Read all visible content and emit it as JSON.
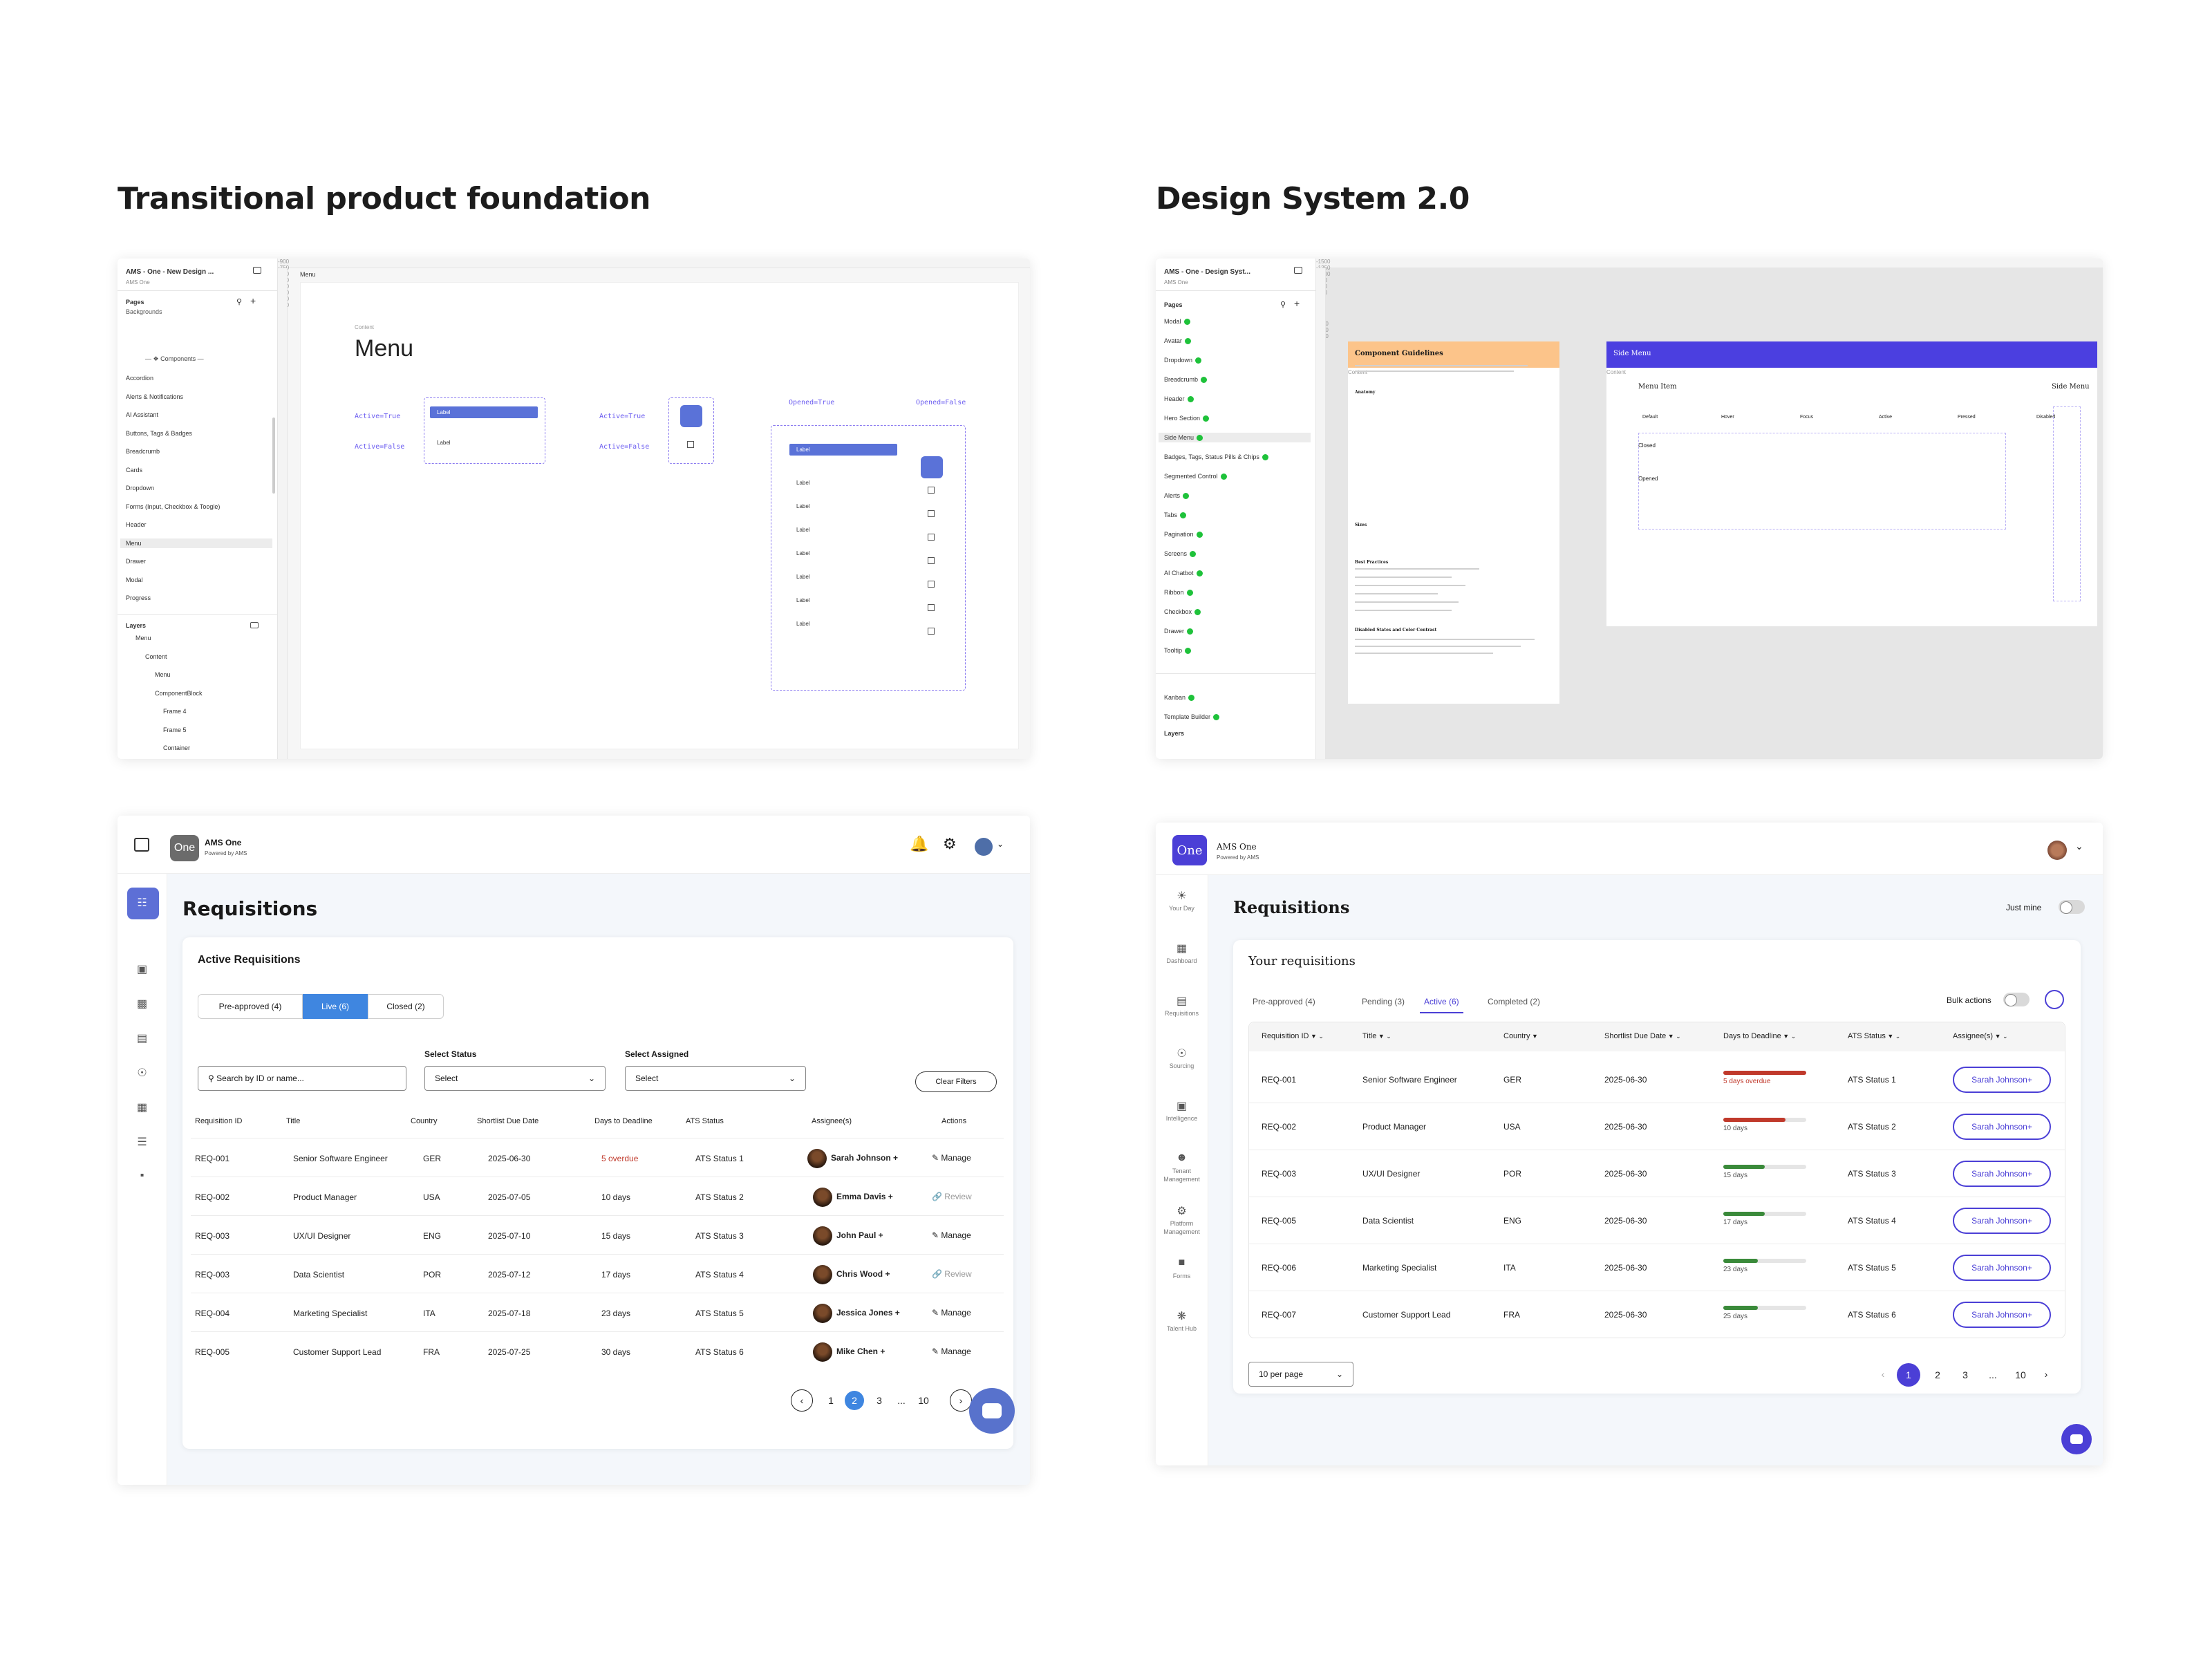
{
  "titles": {
    "left": "Transitional product foundation",
    "right": "Design System 2.0"
  },
  "fig1": {
    "file_title": "AMS - One - New Design ...",
    "file_sub": "AMS One",
    "pages_label": "Pages",
    "pages_top": "Backgrounds",
    "components_divider": "— ❖ Components —",
    "pages": [
      "Accordion",
      "Alerts & Notifications",
      "AI Assistant",
      "Buttons, Tags & Badges",
      "Breadcrumb",
      "Cards",
      "Dropdown",
      "Forms (Input, Checkbox & Toogle)",
      "Header",
      "Menu",
      "Drawer",
      "Modal",
      "Progress"
    ],
    "layers_label": "Layers",
    "layers": [
      "Menu",
      "Content",
      "Menu",
      "ComponentBlock",
      "Frame 4",
      "Frame 5",
      "Container"
    ],
    "frame_tag": "Menu",
    "content_tag": "Content",
    "canvas_title": "Menu",
    "ruler": [
      "-900",
      "-750",
      "-600",
      "-500",
      "-450",
      "-300",
      "-200",
      "-100",
      "0",
      "100",
      "200",
      "300",
      "400",
      "500",
      "600",
      "700",
      "800"
    ],
    "active_true": "Active=True",
    "active_false": "Active=False",
    "opened_true": "Opened=True",
    "opened_false": "Opened=False",
    "item_label": "Label"
  },
  "fig2": {
    "file_title": "AMS - One - Design Syst...",
    "file_sub": "AMS One",
    "pages_label": "Pages",
    "pages": [
      "Modal",
      "Avatar",
      "Dropdown",
      "Breadcrumb",
      "Header",
      "Hero Section",
      "Side Menu",
      "Badges, Tags, Status Pills & Chips",
      "Segmented Control",
      "Alerts",
      "Tabs",
      "Pagination",
      "Screens",
      "AI Chatbot",
      "Ribbon",
      "Checkbox",
      "Drawer",
      "Tooltip"
    ],
    "pages_extra": [
      "Kanban",
      "Template Builder"
    ],
    "layers_label": "Layers",
    "ruler": [
      "-1500",
      "-1250",
      "-1000",
      "-750",
      "-500",
      "-250",
      "0",
      "250",
      "500",
      "750",
      "1000",
      "1250",
      "1500"
    ],
    "guidelines_title": "Component Guidelines",
    "content_tag": "Content",
    "side_menu_title": "Side Menu",
    "menu_item_label": "Menu Item",
    "side_menu_label": "Side Menu",
    "state_cols": [
      "Default",
      "Hover",
      "Focus",
      "Active",
      "Pressed",
      "Disabled"
    ],
    "row_labels": [
      "Closed",
      "Opened"
    ],
    "guide_headings": [
      "Anatomy",
      "Sizes",
      "Best Practices",
      "Disabled States and Color Contrast"
    ]
  },
  "app1": {
    "logo": "One",
    "brand": "AMS One",
    "brand_sub": "Powered by AMS",
    "page_title": "Requisitions",
    "card_title": "Active Requisitions",
    "tabs": [
      "Pre-approved (4)",
      "Live (6)",
      "Closed (2)"
    ],
    "search_placeholder": "Search by ID or name...",
    "status_label": "Select Status",
    "status_value": "Select",
    "assigned_label": "Select Assigned",
    "assigned_value": "Select",
    "clear": "Clear Filters",
    "headers": [
      "Requisition ID",
      "Title",
      "Country",
      "Shortlist Due Date",
      "Days to Deadline",
      "ATS Status",
      "Assignee(s)",
      "Actions"
    ],
    "rows": [
      {
        "id": "REQ-001",
        "title": "Senior Software Engineer",
        "country": "GER",
        "date": "2025-06-30",
        "days": "5 overdue",
        "status": "ATS Status 1",
        "assignee": "Sarah Johnson",
        "action": "Manage"
      },
      {
        "id": "REQ-002",
        "title": "Product Manager",
        "country": "USA",
        "date": "2025-07-05",
        "days": "10 days",
        "status": "ATS Status 2",
        "assignee": "Emma Davis",
        "action": "Review"
      },
      {
        "id": "REQ-003",
        "title": "UX/UI Designer",
        "country": "ENG",
        "date": "2025-07-10",
        "days": "15 days",
        "status": "ATS Status 3",
        "assignee": "John Paul",
        "action": "Manage"
      },
      {
        "id": "REQ-003",
        "title": "Data Scientist",
        "country": "POR",
        "date": "2025-07-12",
        "days": "17 days",
        "status": "ATS Status 4",
        "assignee": "Chris Wood",
        "action": "Review"
      },
      {
        "id": "REQ-004",
        "title": "Marketing Specialist",
        "country": "ITA",
        "date": "2025-07-18",
        "days": "23 days",
        "status": "ATS Status 5",
        "assignee": "Jessica Jones",
        "action": "Manage"
      },
      {
        "id": "REQ-005",
        "title": "Customer Support Lead",
        "country": "FRA",
        "date": "2025-07-25",
        "days": "30 days",
        "status": "ATS Status 6",
        "assignee": "Mike Chen",
        "action": "Manage"
      }
    ],
    "pages": [
      "1",
      "2",
      "3",
      "...",
      "10"
    ],
    "colors": {
      "accent": "#3f86e0",
      "overdue": "#c0392b",
      "nav_active": "#5d6fd6"
    }
  },
  "app2": {
    "logo": "One",
    "brand": "AMS One",
    "brand_sub": "Powered by AMS",
    "nav": [
      "Your Day",
      "Dashboard",
      "Requisitions",
      "Sourcing",
      "Intelligence",
      "Tenant Management",
      "Platform Management",
      "Forms",
      "Talent Hub"
    ],
    "page_title": "Requisitions",
    "just_mine": "Just mine",
    "card_title": "Your requisitions",
    "tabs": [
      "Pre-approved (4)",
      "Pending (3)",
      "Active (6)",
      "Completed (2)"
    ],
    "bulk": "Bulk actions",
    "headers": [
      "Requisition ID",
      "Title",
      "Country",
      "Shortlist Due Date",
      "Days to Deadline",
      "ATS Status",
      "Assignee(s)"
    ],
    "rows": [
      {
        "id": "REQ-001",
        "title": "Senior Software Engineer",
        "country": "GER",
        "date": "2025-06-30",
        "days": "5 days overdue",
        "progress": 1.0,
        "color": "#c0392b",
        "status": "ATS Status 1",
        "assignee": "Sarah Johnson"
      },
      {
        "id": "REQ-002",
        "title": "Product Manager",
        "country": "USA",
        "date": "2025-06-30",
        "days": "10 days",
        "progress": 0.75,
        "color": "#c0392b",
        "status": "ATS Status 2",
        "assignee": "Sarah Johnson"
      },
      {
        "id": "REQ-003",
        "title": "UX/UI Designer",
        "country": "POR",
        "date": "2025-06-30",
        "days": "15 days",
        "progress": 0.5,
        "color": "#3a8a3a",
        "status": "ATS Status 3",
        "assignee": "Sarah Johnson"
      },
      {
        "id": "REQ-005",
        "title": "Data Scientist",
        "country": "ENG",
        "date": "2025-06-30",
        "days": "17 days",
        "progress": 0.5,
        "color": "#3a8a3a",
        "status": "ATS Status 4",
        "assignee": "Sarah Johnson"
      },
      {
        "id": "REQ-006",
        "title": "Marketing Specialist",
        "country": "ITA",
        "date": "2025-06-30",
        "days": "23 days",
        "progress": 0.42,
        "color": "#3a8a3a",
        "status": "ATS Status 5",
        "assignee": "Sarah Johnson"
      },
      {
        "id": "REQ-007",
        "title": "Customer Support Lead",
        "country": "FRA",
        "date": "2025-06-30",
        "days": "25 days",
        "progress": 0.42,
        "color": "#3a8a3a",
        "status": "ATS Status 6",
        "assignee": "Sarah Johnson"
      }
    ],
    "per_page": "10 per page",
    "pages": [
      "1",
      "2",
      "3",
      "...",
      "10"
    ],
    "colors": {
      "accent": "#4b3fd6"
    }
  }
}
